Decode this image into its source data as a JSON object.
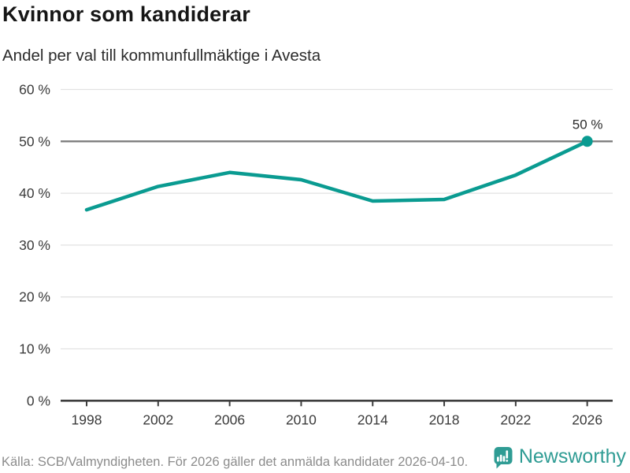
{
  "header": {
    "title": "Kvinnor som kandiderar",
    "subtitle": "Andel per val till kommunfullmäktige i Avesta"
  },
  "chart_data": {
    "type": "line",
    "title": "Kvinnor som kandiderar",
    "subtitle": "Andel per val till kommunfullmäktige i Avesta",
    "x": [
      "1998",
      "2002",
      "2006",
      "2010",
      "2014",
      "2018",
      "2022",
      "2026"
    ],
    "values": [
      36.8,
      41.3,
      44.0,
      42.6,
      38.5,
      38.8,
      43.5,
      50
    ],
    "unit": "%",
    "xlabel": "",
    "ylabel": "",
    "ylim": [
      0,
      60
    ],
    "grid": true,
    "legend": "none",
    "yticks": [
      {
        "value": 0,
        "label": "0 %"
      },
      {
        "value": 10,
        "label": "10 %"
      },
      {
        "value": 20,
        "label": "20 %"
      },
      {
        "value": 30,
        "label": "30 %"
      },
      {
        "value": 40,
        "label": "40 %"
      },
      {
        "value": 50,
        "label": "50 %"
      },
      {
        "value": 60,
        "label": "60 %"
      }
    ],
    "highlight_gridline": 50,
    "end_label": "50 %",
    "colors": {
      "line": "#0a9b91",
      "grid": "#e2e2e2",
      "grid_highlight": "#7d7d7d",
      "axis": "#3d3d3d",
      "tick_text": "#3b3b3b"
    }
  },
  "footer": {
    "source": "Källa: SCB/Valmyndigheten. För 2026 gäller det anmälda kandidater 2026-04-10.",
    "brand": "Newsworthy",
    "brand_color": "#2f9c94",
    "logo_icon": "bar-chart-speech-bubble-icon"
  }
}
